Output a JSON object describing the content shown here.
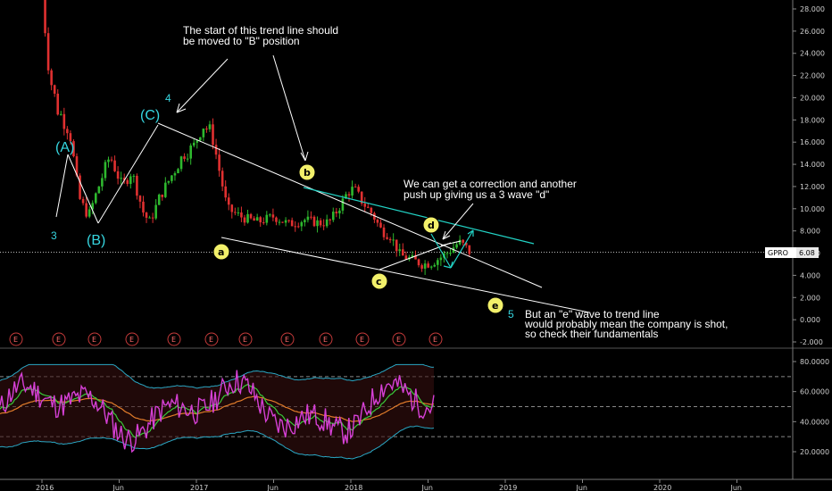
{
  "chart_data": [
    {
      "type": "candlestick",
      "ticker": "GPRO",
      "last_price_label": "6.08",
      "last_price": 6.08,
      "y_ticks": [
        "28.000",
        "26.000",
        "24.000",
        "22.000",
        "20.000",
        "18.000",
        "16.000",
        "14.000",
        "12.000",
        "10.000",
        "8.000",
        "6.000",
        "4.000",
        "2.000",
        "0.000",
        "-2.000"
      ],
      "y_tick_values": [
        28,
        26,
        24,
        22,
        20,
        18,
        16,
        14,
        12,
        10,
        8,
        6,
        4,
        2,
        0,
        -2
      ],
      "x_ticks": [
        "2016",
        "Jun",
        "2017",
        "Jun",
        "2018",
        "Jun",
        "2019",
        "Jun",
        "2020",
        "Jun"
      ],
      "price_path": [
        {
          "t": 0.0,
          "v": 29.5
        },
        {
          "t": 0.05,
          "v": 22
        },
        {
          "t": 0.1,
          "v": 19
        },
        {
          "t": 0.18,
          "v": 17
        },
        {
          "t": 0.24,
          "v": 11
        },
        {
          "t": 0.3,
          "v": 9.3
        },
        {
          "t": 0.38,
          "v": 12.5
        },
        {
          "t": 0.44,
          "v": 14.8
        },
        {
          "t": 0.52,
          "v": 12
        },
        {
          "t": 0.58,
          "v": 13.4
        },
        {
          "t": 0.66,
          "v": 9.5
        },
        {
          "t": 0.7,
          "v": 8.8
        },
        {
          "t": 0.76,
          "v": 11
        },
        {
          "t": 0.84,
          "v": 13
        },
        {
          "t": 0.92,
          "v": 15
        },
        {
          "t": 0.98,
          "v": 15.5
        },
        {
          "t": 1.04,
          "v": 17.6
        },
        {
          "t": 1.1,
          "v": 16.8
        },
        {
          "t": 1.14,
          "v": 14
        },
        {
          "t": 1.2,
          "v": 10
        },
        {
          "t": 1.3,
          "v": 9.2
        },
        {
          "t": 1.4,
          "v": 8.8
        },
        {
          "t": 1.5,
          "v": 9.3
        },
        {
          "t": 1.6,
          "v": 8.6
        },
        {
          "t": 1.7,
          "v": 9
        },
        {
          "t": 1.8,
          "v": 8.7
        },
        {
          "t": 1.86,
          "v": 8.8
        },
        {
          "t": 1.92,
          "v": 10
        },
        {
          "t": 1.98,
          "v": 11.5
        },
        {
          "t": 2.02,
          "v": 11.8
        },
        {
          "t": 2.08,
          "v": 10.5
        },
        {
          "t": 2.14,
          "v": 9.5
        },
        {
          "t": 2.2,
          "v": 8
        },
        {
          "t": 2.26,
          "v": 7.5
        },
        {
          "t": 2.32,
          "v": 5.8
        },
        {
          "t": 2.4,
          "v": 5.4
        },
        {
          "t": 2.46,
          "v": 5.0
        },
        {
          "t": 2.52,
          "v": 5.1
        },
        {
          "t": 2.58,
          "v": 5.6
        },
        {
          "t": 2.64,
          "v": 6.2
        },
        {
          "t": 2.7,
          "v": 7.0
        },
        {
          "t": 2.74,
          "v": 6.6
        },
        {
          "t": 2.77,
          "v": 6.08
        }
      ],
      "wave_labels": {
        "A": "(A)",
        "B": "(B)",
        "C": "(C)",
        "n3": "3",
        "n4": "4",
        "n5": "5",
        "a": "a",
        "b": "b",
        "c": "c",
        "d": "d",
        "e": "e"
      },
      "earnings_marker": "E",
      "earnings_count": 12
    },
    {
      "type": "line",
      "y_ticks": [
        "80.0000",
        "60.0000",
        "40.0000",
        "20.0000"
      ],
      "y_tick_values": [
        80,
        60,
        40,
        20
      ]
    }
  ],
  "annotations": {
    "top_note_line1": "The start of this trend line should",
    "top_note_line2": "be moved to \"B\" position",
    "right_note_line1": "We can get a correction and another",
    "right_note_line2": "push up giving us a 3 wave \"d\"",
    "bottom_note_line1": "But an \"e\" wave to trend line",
    "bottom_note_line2": "would probably mean the company is shot,",
    "bottom_note_line3": "so check their fundamentals"
  },
  "colors": {
    "up_candle": "#2eb82e",
    "down_candle": "#e03030",
    "teal_line": "#22d3c5",
    "trend_line": "#ffffff",
    "circle_fill": "#f2f06a",
    "rsi": "#d640d6",
    "fast_ma": "#39c839",
    "slow_ma": "#e07b2a",
    "band": "#2aa7c4"
  }
}
